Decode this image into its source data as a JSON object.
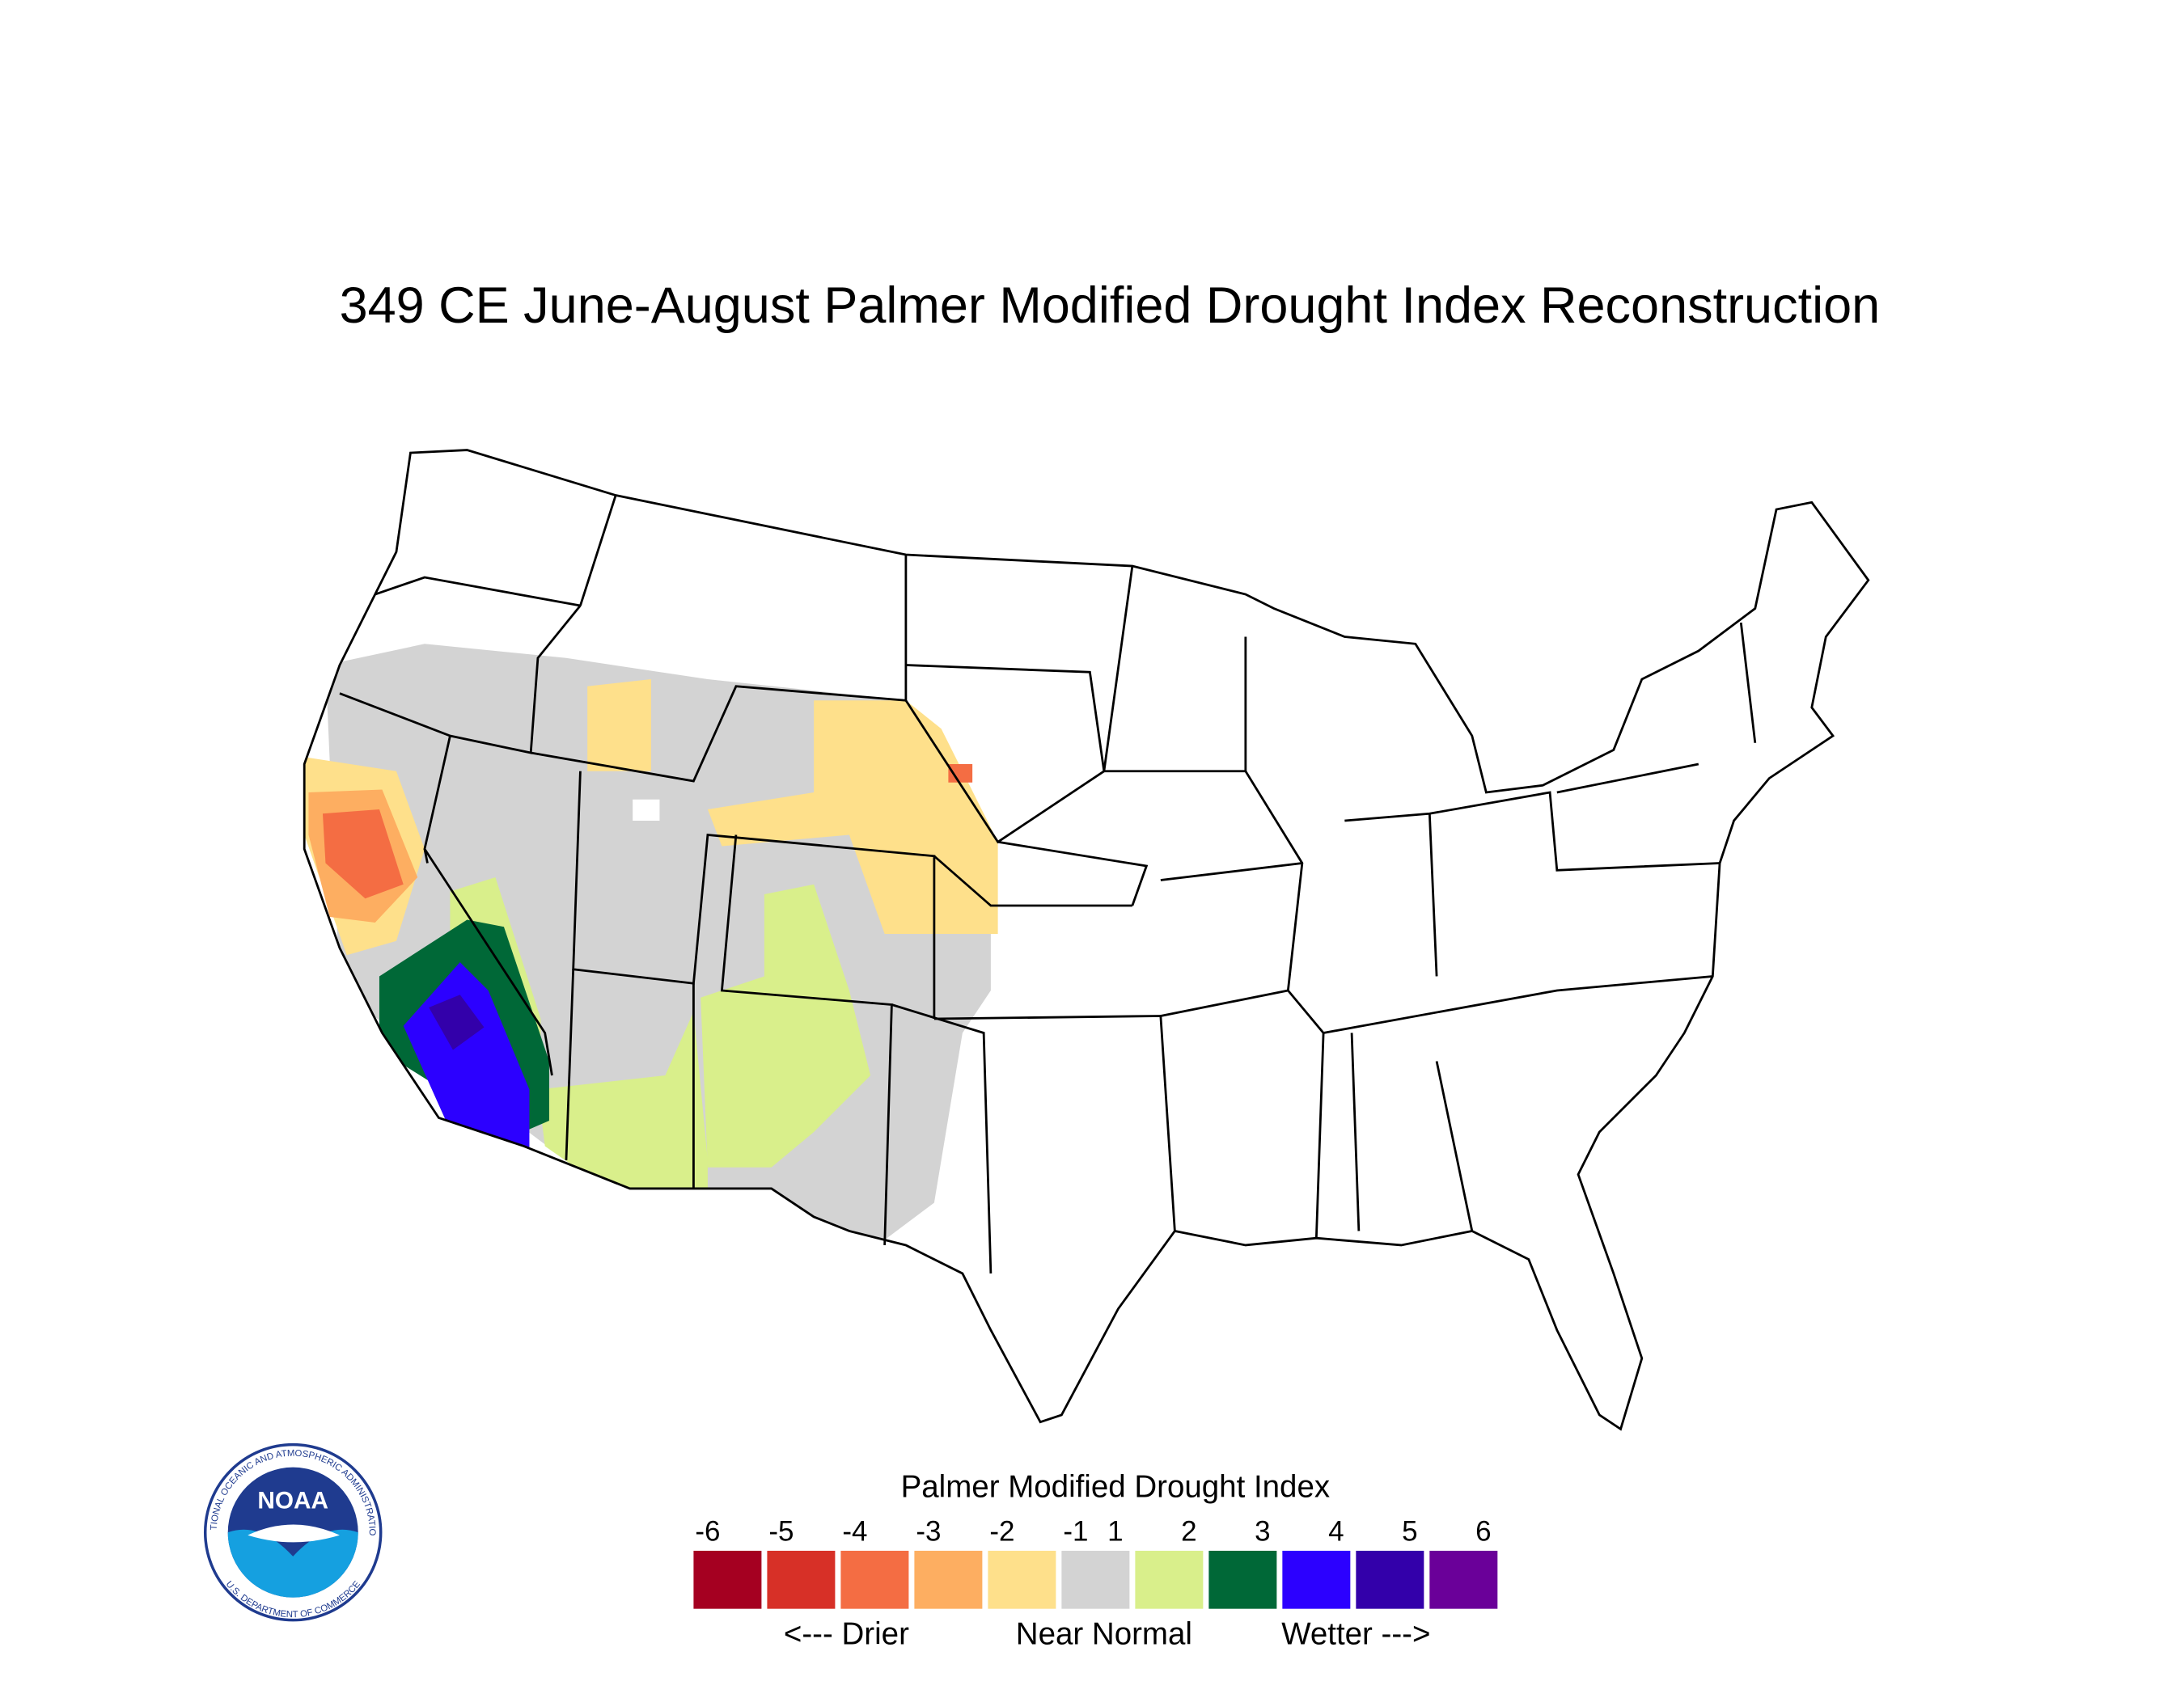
{
  "title": "349 CE  June-August  Palmer Modified Drought Index Reconstruction",
  "map": {
    "values": [
      0,
      -1.5,
      -1.5,
      -1.5,
      -2.5,
      -3.5,
      -3.5,
      1.5,
      1.5,
      1.5,
      2.5,
      3.5,
      4.5
    ]
  },
  "legend": {
    "title": "Palmer Modified Drought Index",
    "ticks": [
      -6,
      -5,
      -4,
      -3,
      -2,
      -1,
      1,
      2,
      3,
      4,
      5,
      6
    ],
    "colors": [
      "#a50021",
      "#d73027",
      "#f46d43",
      "#fdae61",
      "#fee08b",
      "#d3d3d3",
      "#d9ef8b",
      "#006837",
      "#2c00ff",
      "#3300aa",
      "#6a0099"
    ],
    "labels": [
      "<--- Drier",
      "Near Normal",
      "Wetter --->"
    ]
  },
  "logo": {
    "name": "NOAA",
    "ring_top": "NATIONAL OCEANIC AND ATMOSPHERIC ADMINISTRATION",
    "ring_bottom": "U.S. DEPARTMENT OF COMMERCE"
  }
}
